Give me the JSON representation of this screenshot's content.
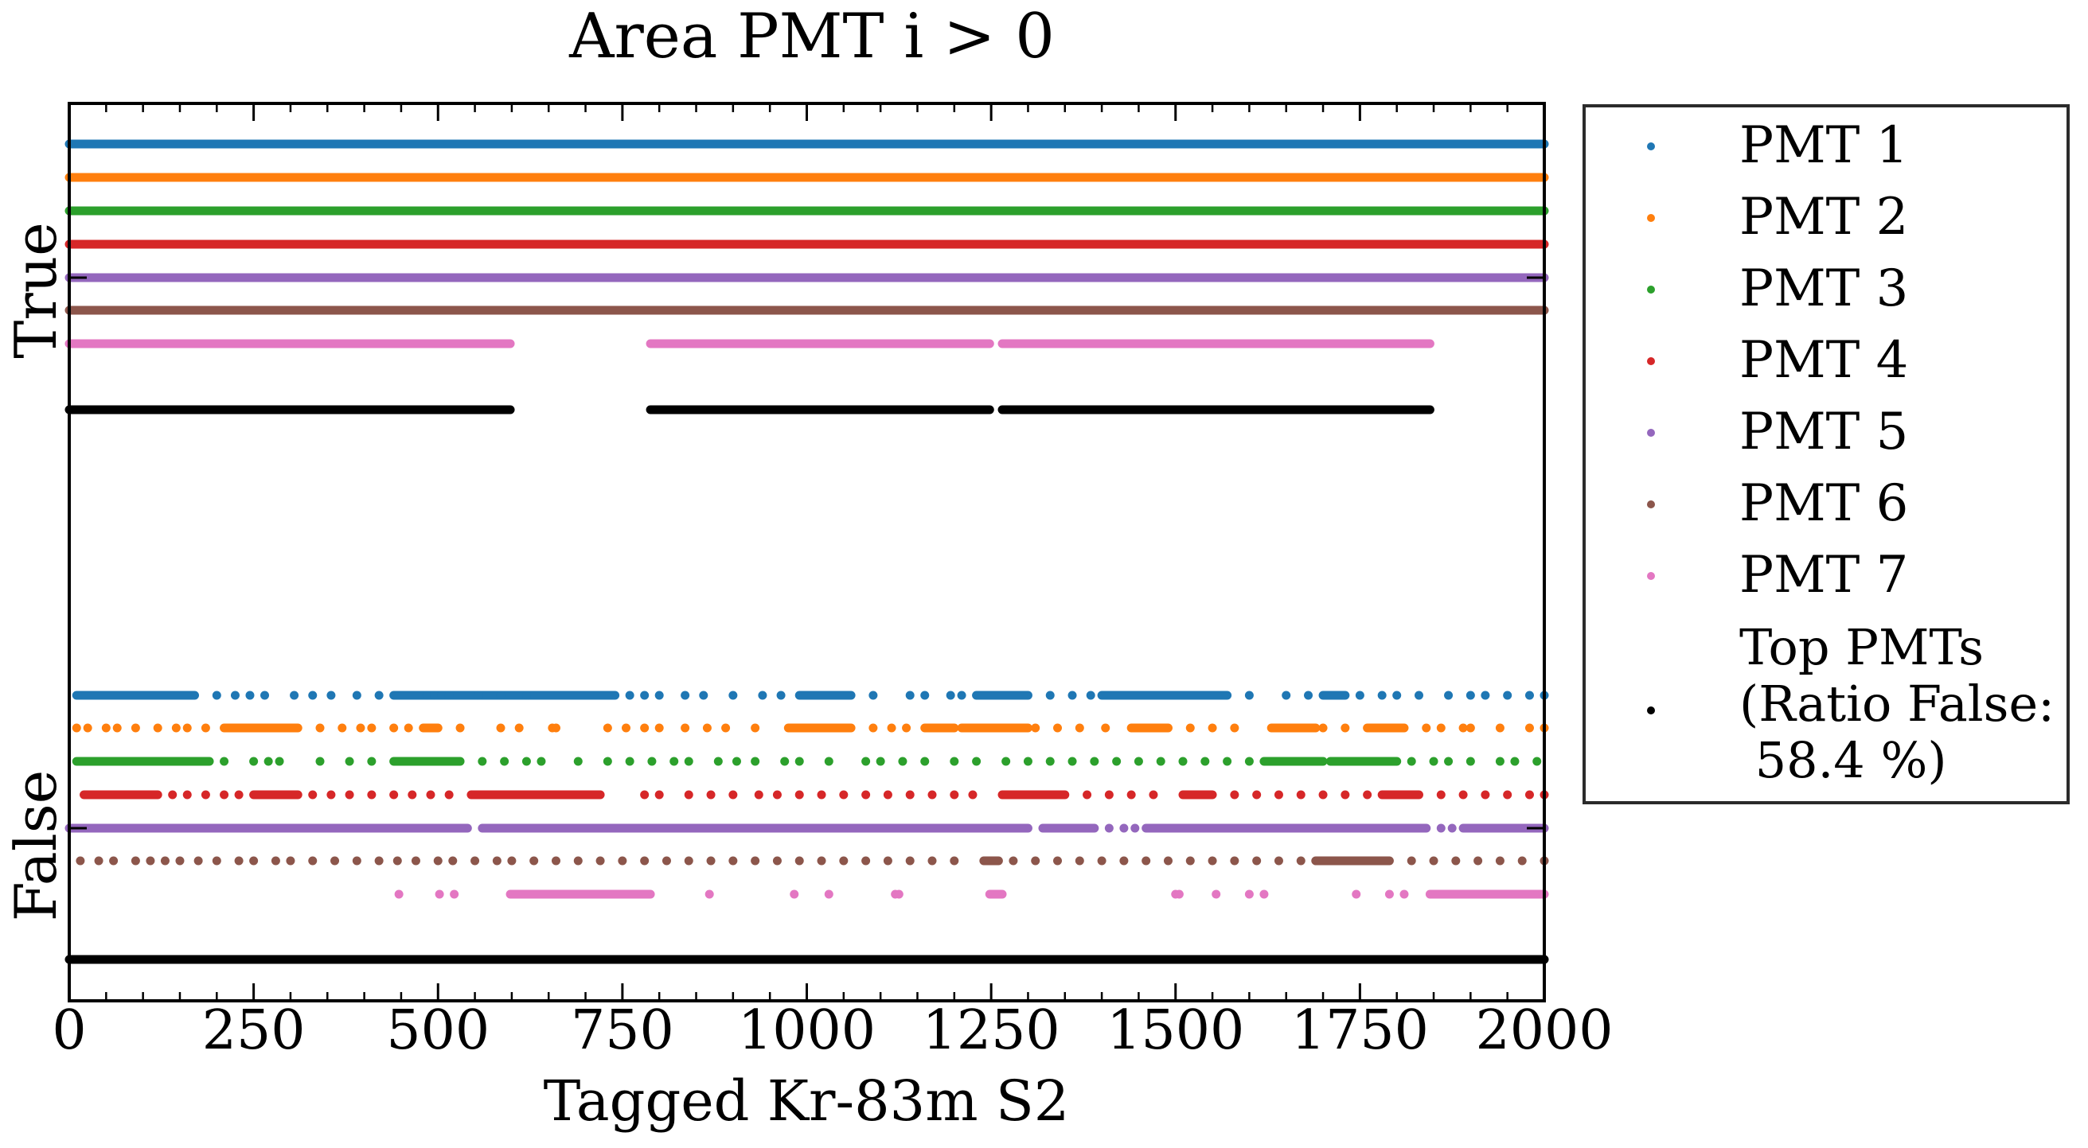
{
  "chart_data": {
    "type": "scatter",
    "title": "Area PMT i > 0",
    "xlabel": "Tagged Kr-83m S2",
    "ylabel": "",
    "xlim": [
      0,
      2000
    ],
    "x_ticks": [
      "0",
      "250",
      "500",
      "750",
      "1000",
      "1250",
      "1500",
      "1750",
      "2000"
    ],
    "x_tick_values": [
      0,
      250,
      500,
      750,
      1000,
      1250,
      1500,
      1750,
      2000
    ],
    "y_categories": [
      "True",
      "False"
    ],
    "grid": false,
    "legend_position": "outside-right",
    "series": [
      {
        "name": "PMT 1",
        "color": "#1f77b4",
        "true_ranges": [
          [
            0,
            2000
          ]
        ],
        "false_ranges": [
          [
            10,
            170
          ],
          [
            440,
            740
          ],
          [
            990,
            1060
          ],
          [
            1230,
            1300
          ],
          [
            1400,
            1570
          ],
          [
            1700,
            1730
          ]
        ],
        "false_points": [
          200,
          225,
          245,
          265,
          305,
          330,
          355,
          390,
          420,
          485,
          495,
          505,
          515,
          555,
          585,
          620,
          760,
          780,
          800,
          835,
          860,
          900,
          940,
          965,
          1090,
          1140,
          1160,
          1195,
          1210,
          1330,
          1360,
          1385,
          1600,
          1650,
          1680,
          1750,
          1780,
          1800,
          1830,
          1870,
          1900,
          1920,
          1950,
          1980,
          2000
        ]
      },
      {
        "name": "PMT 2",
        "color": "#ff7f0e",
        "true_ranges": [
          [
            0,
            2000
          ]
        ],
        "false_ranges": [
          [
            210,
            310
          ],
          [
            480,
            500
          ],
          [
            975,
            1060
          ],
          [
            1160,
            1200
          ],
          [
            1210,
            1300
          ],
          [
            1440,
            1490
          ],
          [
            1630,
            1690
          ],
          [
            1760,
            1810
          ]
        ],
        "false_points": [
          10,
          25,
          50,
          65,
          90,
          120,
          145,
          160,
          185,
          340,
          370,
          395,
          410,
          440,
          460,
          530,
          585,
          610,
          655,
          660,
          730,
          755,
          780,
          800,
          835,
          865,
          890,
          930,
          1090,
          1115,
          1135,
          1310,
          1340,
          1370,
          1405,
          1520,
          1550,
          1580,
          1700,
          1730,
          1840,
          1860,
          1890,
          1900,
          1940,
          1980,
          2000
        ]
      },
      {
        "name": "PMT 3",
        "color": "#2ca02c",
        "true_ranges": [
          [
            0,
            2000
          ]
        ],
        "false_ranges": [
          [
            10,
            190
          ],
          [
            440,
            530
          ],
          [
            1620,
            1700
          ],
          [
            1710,
            1800
          ]
        ],
        "false_points": [
          210,
          250,
          270,
          285,
          340,
          380,
          410,
          560,
          590,
          620,
          640,
          690,
          730,
          760,
          790,
          820,
          840,
          880,
          905,
          930,
          970,
          990,
          1030,
          1080,
          1100,
          1130,
          1160,
          1200,
          1230,
          1270,
          1300,
          1330,
          1360,
          1390,
          1420,
          1450,
          1480,
          1510,
          1540,
          1570,
          1600,
          1820,
          1850,
          1870,
          1900,
          1940,
          1960,
          1990
        ]
      },
      {
        "name": "PMT 4",
        "color": "#d62728",
        "true_ranges": [
          [
            0,
            2000
          ]
        ],
        "false_ranges": [
          [
            20,
            120
          ],
          [
            250,
            310
          ],
          [
            545,
            720
          ],
          [
            1265,
            1350
          ],
          [
            1510,
            1550
          ],
          [
            1780,
            1830
          ]
        ],
        "false_points": [
          140,
          160,
          185,
          210,
          230,
          330,
          355,
          380,
          410,
          440,
          465,
          490,
          515,
          780,
          800,
          840,
          870,
          900,
          935,
          960,
          990,
          1020,
          1050,
          1080,
          1110,
          1140,
          1170,
          1200,
          1225,
          1380,
          1410,
          1440,
          1470,
          1580,
          1610,
          1640,
          1670,
          1700,
          1730,
          1760,
          1860,
          1890,
          1920,
          1950,
          1980,
          2000
        ]
      },
      {
        "name": "PMT 5",
        "color": "#9467bd",
        "true_ranges": [
          [
            0,
            2000
          ]
        ],
        "false_ranges": [
          [
            0,
            540
          ],
          [
            560,
            1300
          ],
          [
            1320,
            1390
          ],
          [
            1460,
            1840
          ],
          [
            1890,
            2000
          ]
        ],
        "false_points": [
          1410,
          1430,
          1445,
          1860,
          1875
        ]
      },
      {
        "name": "PMT 6",
        "color": "#8c564b",
        "true_ranges": [
          [
            0,
            2000
          ]
        ],
        "false_ranges": [
          [
            1240,
            1260
          ],
          [
            1690,
            1790
          ]
        ],
        "false_points": [
          15,
          40,
          60,
          90,
          110,
          130,
          150,
          175,
          200,
          230,
          250,
          280,
          300,
          330,
          360,
          390,
          420,
          445,
          470,
          500,
          520,
          550,
          580,
          600,
          630,
          660,
          690,
          720,
          750,
          780,
          810,
          840,
          870,
          900,
          930,
          960,
          990,
          1020,
          1050,
          1080,
          1110,
          1140,
          1170,
          1200,
          1280,
          1310,
          1340,
          1370,
          1400,
          1430,
          1460,
          1490,
          1520,
          1550,
          1580,
          1610,
          1640,
          1670,
          1820,
          1850,
          1880,
          1910,
          1940,
          1970,
          2000
        ]
      },
      {
        "name": "PMT 7",
        "color": "#e377c2",
        "true_ranges": [
          [
            0,
            598
          ],
          [
            788,
            1248
          ],
          [
            1265,
            1845
          ]
        ],
        "false_ranges": [
          [
            598,
            788
          ],
          [
            1248,
            1265
          ],
          [
            1845,
            2000
          ]
        ],
        "false_points": [
          447,
          502,
          522,
          868,
          983,
          1030,
          1120,
          1125,
          1500,
          1505,
          1555,
          1600,
          1620,
          1745,
          1790,
          1810
        ]
      },
      {
        "name": "Top PMTs\n(Ratio False:\n 58.4 %)",
        "color": "#000000",
        "true_ranges": [
          [
            0,
            598
          ],
          [
            788,
            1248
          ],
          [
            1265,
            1845
          ]
        ],
        "false_ranges": [
          [
            0,
            2000
          ]
        ],
        "false_points": []
      }
    ],
    "legend": {
      "entries": [
        "PMT 1",
        "PMT 2",
        "PMT 3",
        "PMT 4",
        "PMT 5",
        "PMT 6",
        "PMT 7"
      ],
      "top_pmts_lines": [
        "Top PMTs",
        "(Ratio False:",
        " 58.4 %)"
      ]
    }
  }
}
